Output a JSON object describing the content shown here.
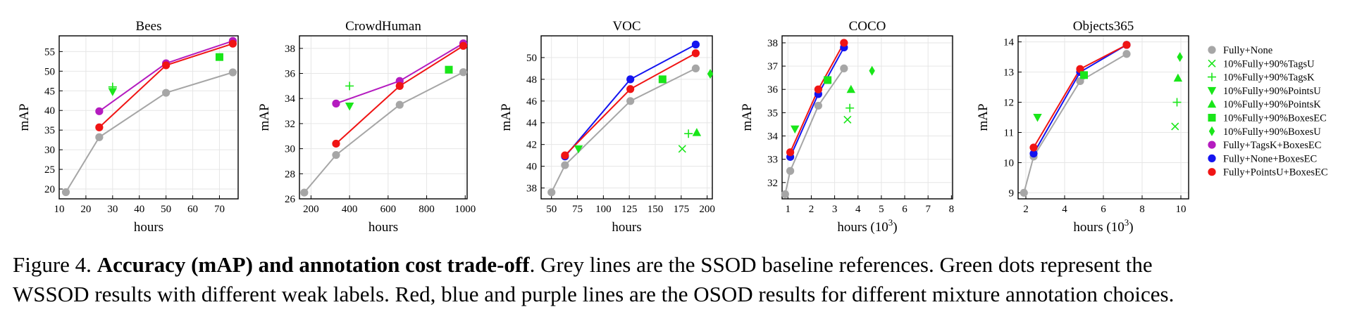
{
  "colors": {
    "Fully+None": "#a6a6a6",
    "weak": "#19e619",
    "Fully+TagsK+BoxesEC": "#b41bbf",
    "Fully+None+BoxesEC": "#1414f0",
    "Fully+PointsU+BoxesEC": "#f01414"
  },
  "legend": [
    {
      "label": "Fully+None",
      "marker": "circle",
      "color": "#a6a6a6"
    },
    {
      "label": "10%Fully+90%TagsU",
      "marker": "x",
      "color": "#19e619"
    },
    {
      "label": "10%Fully+90%TagsK",
      "marker": "plus",
      "color": "#19e619"
    },
    {
      "label": "10%Fully+90%PointsU",
      "marker": "triangle-down",
      "color": "#19e619"
    },
    {
      "label": "10%Fully+90%PointsK",
      "marker": "triangle-up",
      "color": "#19e619"
    },
    {
      "label": "10%Fully+90%BoxesEC",
      "marker": "square",
      "color": "#19e619"
    },
    {
      "label": "10%Fully+90%BoxesU",
      "marker": "diamond",
      "color": "#19e619"
    },
    {
      "label": "Fully+TagsK+BoxesEC",
      "marker": "circle",
      "color": "#b41bbf"
    },
    {
      "label": "Fully+None+BoxesEC",
      "marker": "circle",
      "color": "#1414f0"
    },
    {
      "label": "Fully+PointsU+BoxesEC",
      "marker": "circle",
      "color": "#f01414"
    }
  ],
  "caption": {
    "prefix": "Figure 4.  ",
    "bold": "Accuracy (mAP) and annotation cost trade-off",
    "rest1": ".  Grey lines are the SSOD baseline references.  Green dots represent the",
    "line2": "WSSOD results with different weak labels. Red, blue and purple lines are the OSOD results for different mixture annotation choices."
  },
  "chart_data": [
    {
      "type": "line",
      "title": "Bees",
      "xlabel": "hours",
      "xlabel_sup": "",
      "ylabel": "mAP",
      "xlim": [
        10,
        77
      ],
      "ylim": [
        17.5,
        59
      ],
      "xticks": [
        10,
        20,
        30,
        40,
        50,
        60,
        70
      ],
      "xticklabels": [
        "10",
        "20",
        "30",
        "40",
        "50",
        "60",
        "70"
      ],
      "yticks": [
        20,
        25,
        30,
        35,
        40,
        45,
        50,
        55
      ],
      "yticklabels": [
        "20",
        "25",
        "30",
        "35",
        "40",
        "45",
        "50",
        "55"
      ],
      "lines": [
        {
          "name": "Fully+None",
          "x": [
            12.5,
            25,
            50,
            75
          ],
          "y": [
            19.2,
            33.2,
            44.5,
            49.7
          ]
        },
        {
          "name": "Fully+TagsK+BoxesEC",
          "x": [
            25,
            50,
            75
          ],
          "y": [
            39.8,
            52.0,
            57.7
          ]
        },
        {
          "name": "Fully+PointsU+BoxesEC",
          "x": [
            25,
            50,
            75
          ],
          "y": [
            35.7,
            51.5,
            57.0
          ]
        }
      ],
      "points": [
        {
          "name": "10%Fully+90%TagsK",
          "x": 30,
          "y": 46.0
        },
        {
          "name": "10%Fully+90%PointsU",
          "x": 30,
          "y": 44.8
        },
        {
          "name": "10%Fully+90%BoxesEC",
          "x": 70,
          "y": 53.6
        }
      ]
    },
    {
      "type": "line",
      "title": "CrowdHuman",
      "xlabel": "hours",
      "xlabel_sup": "",
      "ylabel": "mAP",
      "xlim": [
        140,
        1010
      ],
      "ylim": [
        26,
        39
      ],
      "xticks": [
        200,
        400,
        600,
        800,
        1000
      ],
      "xticklabels": [
        "200",
        "400",
        "600",
        "800",
        "1000"
      ],
      "yticks": [
        26,
        28,
        30,
        32,
        34,
        36,
        38
      ],
      "yticklabels": [
        "26",
        "28",
        "30",
        "32",
        "34",
        "36",
        "38"
      ],
      "lines": [
        {
          "name": "Fully+None",
          "x": [
            165,
            330,
            660,
            990
          ],
          "y": [
            26.5,
            29.5,
            33.5,
            36.1
          ]
        },
        {
          "name": "Fully+TagsK+BoxesEC",
          "x": [
            330,
            660,
            990
          ],
          "y": [
            33.6,
            35.4,
            38.4
          ]
        },
        {
          "name": "Fully+PointsU+BoxesEC",
          "x": [
            330,
            660,
            990
          ],
          "y": [
            30.4,
            35.0,
            38.2
          ]
        }
      ],
      "points": [
        {
          "name": "10%Fully+90%TagsK",
          "x": 400,
          "y": 35.0
        },
        {
          "name": "10%Fully+90%PointsU",
          "x": 400,
          "y": 33.4
        },
        {
          "name": "10%Fully+90%BoxesEC",
          "x": 915,
          "y": 36.3
        }
      ]
    },
    {
      "type": "line",
      "title": "VOC",
      "xlabel": "hours",
      "xlabel_sup": "",
      "ylabel": "mAP",
      "xlim": [
        40,
        205
      ],
      "ylim": [
        37,
        52
      ],
      "xticks": [
        50,
        75,
        100,
        125,
        150,
        175,
        200
      ],
      "xticklabels": [
        "50",
        "75",
        "100",
        "125",
        "150",
        "175",
        "200"
      ],
      "yticks": [
        38,
        40,
        42,
        44,
        46,
        48,
        50
      ],
      "yticklabels": [
        "38",
        "40",
        "42",
        "44",
        "46",
        "48",
        "50"
      ],
      "lines": [
        {
          "name": "Fully+None",
          "x": [
            50,
            63,
            126,
            189
          ],
          "y": [
            37.6,
            40.1,
            46.0,
            49.0
          ]
        },
        {
          "name": "Fully+None+BoxesEC",
          "x": [
            63,
            126,
            189
          ],
          "y": [
            40.9,
            48.0,
            51.2
          ]
        },
        {
          "name": "Fully+PointsU+BoxesEC",
          "x": [
            63,
            126,
            189
          ],
          "y": [
            41.0,
            47.1,
            50.4
          ]
        }
      ],
      "points": [
        {
          "name": "10%Fully+90%PointsU",
          "x": 76,
          "y": 41.6
        },
        {
          "name": "10%Fully+90%BoxesEC",
          "x": 157,
          "y": 48.0
        },
        {
          "name": "10%Fully+90%TagsU",
          "x": 176,
          "y": 41.6
        },
        {
          "name": "10%Fully+90%TagsK",
          "x": 182,
          "y": 43.0
        },
        {
          "name": "10%Fully+90%PointsK",
          "x": 190,
          "y": 43.1
        },
        {
          "name": "10%Fully+90%BoxesU",
          "x": 203,
          "y": 48.5
        }
      ]
    },
    {
      "type": "line",
      "title": "COCO",
      "xlabel": "hours (10",
      "xlabel_sup": "3",
      "ylabel": "mAP",
      "xlim": [
        0.75,
        8.05
      ],
      "ylim": [
        31.3,
        38.3
      ],
      "xticks": [
        1,
        2,
        3,
        4,
        5,
        6,
        7,
        8
      ],
      "xticklabels": [
        "1",
        "2",
        "3",
        "4",
        "5",
        "6",
        "7",
        "8"
      ],
      "yticks": [
        32,
        33,
        34,
        35,
        36,
        37,
        38
      ],
      "yticklabels": [
        "32",
        "33",
        "34",
        "35",
        "36",
        "37",
        "38"
      ],
      "lines": [
        {
          "name": "Fully+None",
          "x": [
            0.88,
            1.1,
            2.3,
            3.4
          ],
          "y": [
            31.5,
            32.5,
            35.3,
            36.9
          ]
        },
        {
          "name": "Fully+None+BoxesEC",
          "x": [
            1.1,
            2.3,
            3.4
          ],
          "y": [
            33.1,
            35.8,
            37.8
          ]
        },
        {
          "name": "Fully+PointsU+BoxesEC",
          "x": [
            1.1,
            2.3,
            3.4
          ],
          "y": [
            33.3,
            36.0,
            38.0
          ]
        }
      ],
      "points": [
        {
          "name": "10%Fully+90%PointsU",
          "x": 1.3,
          "y": 34.3
        },
        {
          "name": "10%Fully+90%BoxesEC",
          "x": 2.7,
          "y": 36.4
        },
        {
          "name": "10%Fully+90%TagsU",
          "x": 3.55,
          "y": 34.7
        },
        {
          "name": "10%Fully+90%TagsK",
          "x": 3.65,
          "y": 35.2
        },
        {
          "name": "10%Fully+90%PointsK",
          "x": 3.7,
          "y": 36.0
        },
        {
          "name": "10%Fully+90%BoxesU",
          "x": 4.6,
          "y": 36.8
        }
      ]
    },
    {
      "type": "line",
      "title": "Objects365",
      "xlabel": "hours (10",
      "xlabel_sup": "3",
      "ylabel": "mAP",
      "xlim": [
        1.6,
        10.4
      ],
      "ylim": [
        8.8,
        14.2
      ],
      "xticks": [
        2,
        4,
        6,
        8,
        10
      ],
      "xticklabels": [
        "2",
        "4",
        "6",
        "8",
        "10"
      ],
      "yticks": [
        9,
        10,
        11,
        12,
        13,
        14
      ],
      "yticklabels": [
        "9",
        "10",
        "11",
        "12",
        "13",
        "14"
      ],
      "lines": [
        {
          "name": "Fully+None",
          "x": [
            1.9,
            2.4,
            4.8,
            7.2
          ],
          "y": [
            9.0,
            10.2,
            12.7,
            13.6
          ]
        },
        {
          "name": "Fully+None+BoxesEC",
          "x": [
            2.4,
            4.8,
            7.2
          ],
          "y": [
            10.3,
            13.0,
            13.9
          ]
        },
        {
          "name": "Fully+PointsU+BoxesEC",
          "x": [
            2.4,
            4.8,
            7.2
          ],
          "y": [
            10.5,
            13.1,
            13.9
          ]
        }
      ],
      "points": [
        {
          "name": "10%Fully+90%PointsU",
          "x": 2.6,
          "y": 11.5
        },
        {
          "name": "10%Fully+90%BoxesEC",
          "x": 5.0,
          "y": 12.9
        },
        {
          "name": "10%Fully+90%TagsU",
          "x": 9.7,
          "y": 11.2
        },
        {
          "name": "10%Fully+90%TagsK",
          "x": 9.8,
          "y": 12.0
        },
        {
          "name": "10%Fully+90%PointsK",
          "x": 9.85,
          "y": 12.8
        },
        {
          "name": "10%Fully+90%BoxesU",
          "x": 9.95,
          "y": 13.5
        }
      ]
    }
  ]
}
